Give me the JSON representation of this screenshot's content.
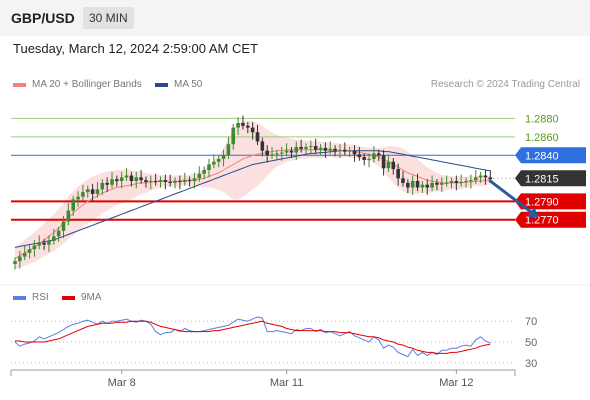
{
  "header": {
    "symbol": "GBP/USD",
    "timeframe": "30 MIN"
  },
  "datetime": "Tuesday, March 12, 2024 2:59:00 AM CET",
  "credit": "Research © 2024 Trading Central",
  "chart_data": [
    {
      "type": "candlestick",
      "legend": [
        {
          "name": "MA 20 + Bollinger Bands",
          "color": "#f08080"
        },
        {
          "name": "MA 50",
          "color": "#2a4a8a"
        }
      ],
      "ylim": [
        1.271,
        1.29
      ],
      "last_price": {
        "value": 1.2815,
        "label": "1.2815",
        "color": "#333333"
      },
      "levels": [
        {
          "value": 1.288,
          "label": "1.2880",
          "kind": "resistance",
          "color": "#9acd7a"
        },
        {
          "value": 1.286,
          "label": "1.2860",
          "kind": "resistance",
          "color": "#9acd7a"
        },
        {
          "value": 1.284,
          "label": "1.2840",
          "kind": "pivot",
          "color": "#2f6fe0"
        },
        {
          "value": 1.279,
          "label": "1.2790",
          "kind": "support",
          "color": "#e00000"
        },
        {
          "value": 1.277,
          "label": "1.2770",
          "kind": "support",
          "color": "#e00000"
        }
      ],
      "x_ticks": [
        {
          "index": 22,
          "label": "Mar 8"
        },
        {
          "index": 56,
          "label": "Mar 11"
        },
        {
          "index": 91,
          "label": "Mar 12"
        }
      ],
      "close": [
        1.2725,
        1.273,
        1.2734,
        1.2738,
        1.2742,
        1.2745,
        1.2743,
        1.2747,
        1.2752,
        1.2758,
        1.2768,
        1.278,
        1.2792,
        1.2795,
        1.28,
        1.2803,
        1.2798,
        1.2803,
        1.281,
        1.2808,
        1.2814,
        1.2812,
        1.2816,
        1.2818,
        1.2812,
        1.2816,
        1.2813,
        1.2811,
        1.2812,
        1.2811,
        1.2813,
        1.2811,
        1.281,
        1.2812,
        1.2811,
        1.2813,
        1.2812,
        1.2815,
        1.282,
        1.2824,
        1.283,
        1.2833,
        1.2836,
        1.284,
        1.2852,
        1.287,
        1.2875,
        1.2872,
        1.287,
        1.2865,
        1.2855,
        1.2845,
        1.284,
        1.2841,
        1.2842,
        1.2843,
        1.2845,
        1.2843,
        1.2849,
        1.2847,
        1.2849,
        1.285,
        1.2846,
        1.2848,
        1.2845,
        1.2847,
        1.2845,
        1.2846,
        1.2844,
        1.2845,
        1.2841,
        1.2838,
        1.2835,
        1.2836,
        1.2842,
        1.284,
        1.2826,
        1.2833,
        1.2825,
        1.2815,
        1.281,
        1.2805,
        1.2812,
        1.2805,
        1.2808,
        1.2805,
        1.281,
        1.2808,
        1.281,
        1.281,
        1.2812,
        1.281,
        1.2811,
        1.2812,
        1.2813,
        1.2816,
        1.2818,
        1.2816,
        1.2814
      ],
      "ma20": [
        1.2728,
        1.2731,
        1.2734,
        1.2737,
        1.274,
        1.2744,
        1.2748,
        1.2752,
        1.2756,
        1.2761,
        1.2766,
        1.2772,
        1.2777,
        1.2782,
        1.2786,
        1.279,
        1.2793,
        1.2796,
        1.2799,
        1.2801,
        1.2803,
        1.2805,
        1.2806,
        1.2807,
        1.2808,
        1.2809,
        1.281,
        1.281,
        1.2811,
        1.2811,
        1.2812,
        1.2812,
        1.2812,
        1.2812,
        1.2812,
        1.2813,
        1.2813,
        1.2813,
        1.2814,
        1.2815,
        1.2817,
        1.2819,
        1.2821,
        1.2824,
        1.2827,
        1.283,
        1.2833,
        1.2836,
        1.2838,
        1.284,
        1.2841,
        1.2842,
        1.2843,
        1.2844,
        1.2845,
        1.2845,
        1.2846,
        1.2846,
        1.2846,
        1.2846,
        1.2846,
        1.2846,
        1.2846,
        1.2846,
        1.2846,
        1.2846,
        1.2845,
        1.2845,
        1.2845,
        1.2845,
        1.2844,
        1.2843,
        1.2842,
        1.2841,
        1.284,
        1.2838,
        1.2836,
        1.2833,
        1.283,
        1.2827,
        1.2824,
        1.2821,
        1.2819,
        1.2817,
        1.2815,
        1.2813,
        1.2812,
        1.2811,
        1.281,
        1.281,
        1.281,
        1.281,
        1.281,
        1.2811,
        1.2811,
        1.2812,
        1.2812,
        1.2813,
        1.2813
      ],
      "bb_upper": [
        1.274,
        1.2744,
        1.2748,
        1.2752,
        1.2756,
        1.2761,
        1.2766,
        1.2771,
        1.2776,
        1.2782,
        1.2788,
        1.2795,
        1.2801,
        1.2806,
        1.281,
        1.2814,
        1.2817,
        1.2819,
        1.2821,
        1.2822,
        1.2823,
        1.2824,
        1.2824,
        1.2825,
        1.2824,
        1.2823,
        1.2822,
        1.2821,
        1.282,
        1.2819,
        1.2819,
        1.2818,
        1.2818,
        1.2818,
        1.2818,
        1.2818,
        1.2819,
        1.282,
        1.2822,
        1.2825,
        1.2829,
        1.2834,
        1.284,
        1.2848,
        1.2858,
        1.2868,
        1.2874,
        1.2877,
        1.2878,
        1.2877,
        1.2875,
        1.2872,
        1.2868,
        1.2865,
        1.2862,
        1.286,
        1.2859,
        1.2858,
        1.2857,
        1.2856,
        1.2856,
        1.2855,
        1.2855,
        1.2855,
        1.2854,
        1.2854,
        1.2853,
        1.2853,
        1.2852,
        1.2852,
        1.2851,
        1.285,
        1.2849,
        1.2848,
        1.2848,
        1.2848,
        1.2849,
        1.285,
        1.285,
        1.2849,
        1.2847,
        1.2844,
        1.284,
        1.2836,
        1.2831,
        1.2827,
        1.2824,
        1.2821,
        1.2819,
        1.2818,
        1.2817,
        1.2817,
        1.2817,
        1.2817,
        1.2817,
        1.2817,
        1.2818,
        1.2818,
        1.2818
      ],
      "bb_lower": [
        1.2716,
        1.2718,
        1.272,
        1.2722,
        1.2724,
        1.2727,
        1.273,
        1.2733,
        1.2736,
        1.274,
        1.2744,
        1.2749,
        1.2753,
        1.2758,
        1.2762,
        1.2766,
        1.2769,
        1.2773,
        1.2777,
        1.278,
        1.2783,
        1.2786,
        1.2788,
        1.2789,
        1.2792,
        1.2795,
        1.2798,
        1.2799,
        1.2802,
        1.2803,
        1.2805,
        1.2806,
        1.2806,
        1.2806,
        1.2806,
        1.2808,
        1.2807,
        1.2806,
        1.2806,
        1.2805,
        1.2805,
        1.2804,
        1.2802,
        1.28,
        1.2796,
        1.2792,
        1.2792,
        1.2795,
        1.2798,
        1.2803,
        1.2807,
        1.2812,
        1.2818,
        1.2823,
        1.2828,
        1.283,
        1.2833,
        1.2834,
        1.2835,
        1.2836,
        1.2836,
        1.2837,
        1.2837,
        1.2837,
        1.2838,
        1.2838,
        1.2837,
        1.2837,
        1.2838,
        1.2838,
        1.2837,
        1.2836,
        1.2835,
        1.2834,
        1.2832,
        1.2828,
        1.2823,
        1.2816,
        1.281,
        1.2805,
        1.2801,
        1.2798,
        1.2798,
        1.2798,
        1.2799,
        1.2799,
        1.28,
        1.2801,
        1.2801,
        1.2802,
        1.2803,
        1.2803,
        1.2803,
        1.2805,
        1.2805,
        1.2807,
        1.2806,
        1.2808,
        1.2808
      ],
      "ma50": [
        1.274,
        1.2741,
        1.2742,
        1.2743,
        1.2744,
        1.2745,
        1.2746,
        1.2747,
        1.2748,
        1.275,
        1.2752,
        1.2754,
        1.2756,
        1.2758,
        1.276,
        1.2762,
        1.2764,
        1.2766,
        1.2768,
        1.277,
        1.2772,
        1.2774,
        1.2776,
        1.2778,
        1.278,
        1.2782,
        1.2784,
        1.2786,
        1.2788,
        1.279,
        1.2792,
        1.2794,
        1.2796,
        1.2798,
        1.28,
        1.2802,
        1.2804,
        1.2806,
        1.2808,
        1.281,
        1.2812,
        1.2814,
        1.2816,
        1.2818,
        1.282,
        1.2822,
        1.2824,
        1.2826,
        1.2828,
        1.283,
        1.2831,
        1.2832,
        1.2833,
        1.2834,
        1.2835,
        1.2836,
        1.2837,
        1.2838,
        1.2839,
        1.284,
        1.2841,
        1.2842,
        1.2842,
        1.2843,
        1.2843,
        1.2844,
        1.2844,
        1.2845,
        1.2845,
        1.2845,
        1.2845,
        1.2845,
        1.2845,
        1.2845,
        1.2845,
        1.2845,
        1.2844,
        1.2844,
        1.2843,
        1.2842,
        1.2841,
        1.284,
        1.2839,
        1.2838,
        1.2837,
        1.2836,
        1.2835,
        1.2834,
        1.2833,
        1.2832,
        1.2831,
        1.283,
        1.2829,
        1.2828,
        1.2827,
        1.2826,
        1.2825,
        1.2824,
        1.2823
      ],
      "forecast": {
        "from": {
          "index": 98,
          "value": 1.2812
        },
        "to": {
          "index": 108,
          "value": 1.2772
        },
        "color": "#2a5aa0"
      }
    },
    {
      "type": "line",
      "legend": [
        {
          "name": "RSI",
          "color": "#5b7ee0"
        },
        {
          "name": "9MA",
          "color": "#e00000"
        }
      ],
      "ylim": [
        25,
        75
      ],
      "y_ticks": [
        {
          "value": 70,
          "label": "70"
        },
        {
          "value": 50,
          "label": "50"
        },
        {
          "value": 30,
          "label": "30"
        }
      ],
      "rsi": [
        50,
        46,
        48,
        49,
        51,
        55,
        53,
        55,
        57,
        59,
        62,
        65,
        67,
        68,
        70,
        71,
        69,
        67,
        70,
        68,
        70,
        70,
        71,
        72,
        70,
        69,
        71,
        70,
        67,
        60,
        57,
        59,
        59,
        62,
        60,
        63,
        61,
        60,
        60,
        61,
        62,
        63,
        64,
        65,
        66,
        69,
        72,
        71,
        70,
        72,
        74,
        73,
        60,
        60,
        61,
        60,
        59,
        58,
        62,
        61,
        63,
        63,
        60,
        62,
        59,
        60,
        58,
        56,
        58,
        60,
        56,
        54,
        52,
        50,
        55,
        52,
        44,
        47,
        45,
        40,
        38,
        36,
        43,
        37,
        40,
        37,
        40,
        38,
        42,
        42,
        44,
        44,
        46,
        47,
        46,
        52,
        55,
        51,
        49
      ],
      "ma9": [
        51,
        51,
        50,
        50,
        50,
        50,
        50,
        51,
        52,
        53,
        55,
        57,
        59,
        61,
        63,
        65,
        66,
        67,
        68,
        68,
        68,
        69,
        69,
        69,
        70,
        70,
        70,
        70,
        69,
        67,
        65,
        64,
        63,
        62,
        61,
        60,
        60,
        60,
        60,
        60,
        60,
        61,
        61,
        62,
        63,
        64,
        65,
        66,
        67,
        68,
        69,
        70,
        68,
        67,
        66,
        65,
        63,
        62,
        61,
        61,
        61,
        61,
        61,
        61,
        60,
        60,
        60,
        59,
        59,
        59,
        58,
        57,
        56,
        55,
        55,
        54,
        52,
        51,
        50,
        48,
        47,
        45,
        44,
        42,
        41,
        40,
        40,
        39,
        39,
        39,
        40,
        40,
        41,
        42,
        43,
        44,
        46,
        47,
        48
      ]
    }
  ]
}
